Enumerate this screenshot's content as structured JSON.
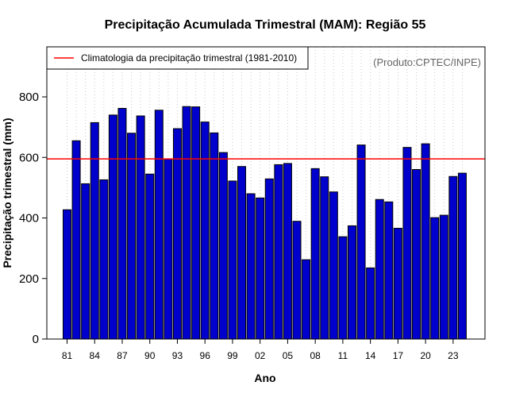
{
  "chart_data": {
    "type": "bar",
    "title": "Precipitação Acumulada Trimestral (MAM): Região 55",
    "xlabel": "Ano",
    "ylabel": "Precipitação trimestral (mm)",
    "credit": "(Produto:CPTEC/INPE)",
    "ylim": [
      0,
      900
    ],
    "yticks": [
      0,
      200,
      400,
      600,
      800
    ],
    "grid": "vertical dotted",
    "legend": {
      "position": "top-left",
      "label": "Climatologia da precipitação trimestral (1981-2010)"
    },
    "climatology": 595,
    "categories": [
      "81",
      "82",
      "83",
      "84",
      "85",
      "86",
      "87",
      "88",
      "89",
      "90",
      "91",
      "92",
      "93",
      "94",
      "95",
      "96",
      "97",
      "98",
      "99",
      "00",
      "01",
      "02",
      "03",
      "04",
      "05",
      "06",
      "07",
      "08",
      "09",
      "10",
      "11",
      "12",
      "13",
      "14",
      "15",
      "16",
      "17",
      "18",
      "19",
      "20",
      "21",
      "22",
      "23",
      "24"
    ],
    "xtick_labels": [
      "81",
      "84",
      "87",
      "90",
      "93",
      "96",
      "99",
      "02",
      "05",
      "08",
      "11",
      "14",
      "17",
      "20",
      "23"
    ],
    "values": [
      427,
      655,
      513,
      715,
      526,
      740,
      762,
      680,
      737,
      545,
      756,
      595,
      695,
      768,
      767,
      717,
      681,
      616,
      522,
      570,
      480,
      466,
      529,
      576,
      580,
      389,
      262,
      563,
      536,
      486,
      338,
      374,
      641,
      235,
      461,
      453,
      366,
      633,
      560,
      645,
      401,
      409,
      537,
      548
    ],
    "colors": {
      "bar_fill": "#0000cc",
      "bar_edge": "#000000",
      "climatology_line": "#ff0000",
      "grid": "#c8c8c8",
      "credit": "#666666"
    }
  }
}
